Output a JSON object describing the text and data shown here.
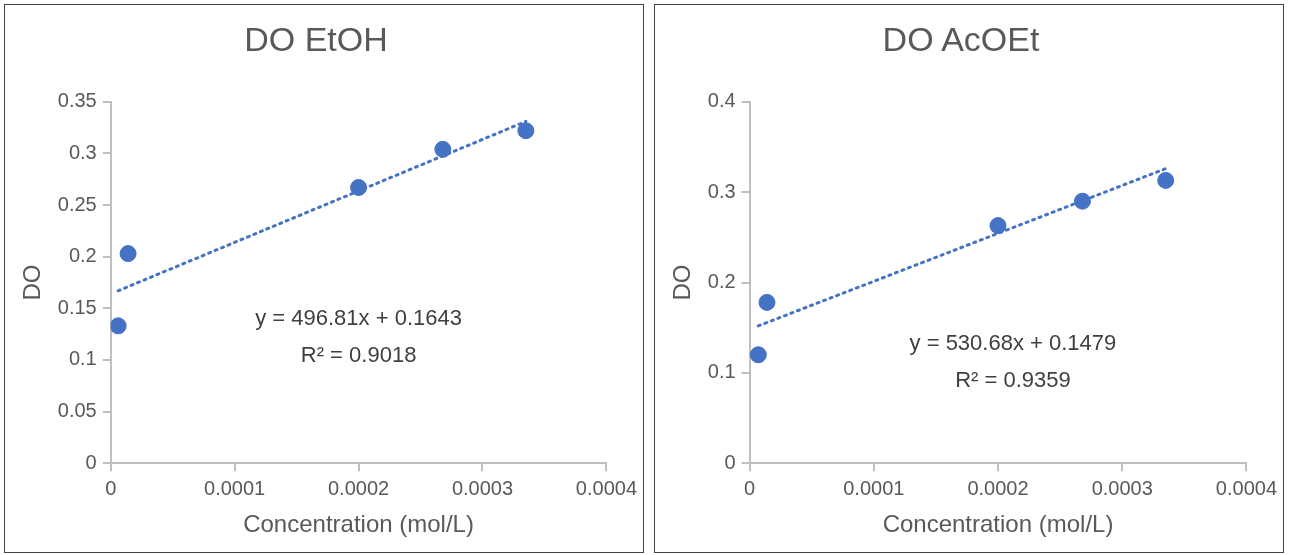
{
  "chart_data": [
    {
      "type": "scatter",
      "title": "DO EtOH",
      "xlabel": "Concentration (mol/L)",
      "ylabel": "DO",
      "x": [
        6e-06,
        1.4e-05,
        0.0002,
        0.000268,
        0.000335
      ],
      "series": [
        {
          "color": "#4472c4",
          "values": [
            0.133,
            0.203,
            0.267,
            0.304,
            0.322
          ]
        },
        {
          "type": "line",
          "color": "#4472c4",
          "line_style": "dotted",
          "marker": "none",
          "x": [
            6e-06,
            0.000335
          ],
          "values": [
            0.167,
            0.331
          ]
        }
      ],
      "marker": "circle",
      "xlim": [
        0,
        0.0004
      ],
      "xticks": [
        0,
        0.0001,
        0.0002,
        0.0003,
        0.0004
      ],
      "ylim": [
        0,
        0.35
      ],
      "yticks": [
        0,
        0.05,
        0.1,
        0.15,
        0.2,
        0.25,
        0.3,
        0.35
      ],
      "grid": false,
      "legend": false,
      "annotations": [
        "y = 496.81x + 0.1643",
        "R² = 0.9018"
      ]
    },
    {
      "type": "scatter",
      "title": "DO AcOEt",
      "xlabel": "Concentration (mol/L)",
      "ylabel": "DO",
      "x": [
        7e-06,
        1.4e-05,
        0.0002,
        0.000268,
        0.000335
      ],
      "series": [
        {
          "color": "#4472c4",
          "values": [
            0.12,
            0.178,
            0.263,
            0.29,
            0.313
          ]
        },
        {
          "type": "line",
          "color": "#4472c4",
          "line_style": "dotted",
          "marker": "none",
          "x": [
            7e-06,
            0.000335
          ],
          "values": [
            0.152,
            0.326
          ]
        }
      ],
      "marker": "circle",
      "xlim": [
        0,
        0.0004
      ],
      "xticks": [
        0,
        0.0001,
        0.0002,
        0.0003,
        0.0004
      ],
      "ylim": [
        0,
        0.4
      ],
      "yticks": [
        0,
        0.1,
        0.2,
        0.3,
        0.4
      ],
      "grid": false,
      "legend": false,
      "annotations": [
        "y = 530.68x + 0.1479",
        "R² = 0.9359"
      ]
    }
  ]
}
